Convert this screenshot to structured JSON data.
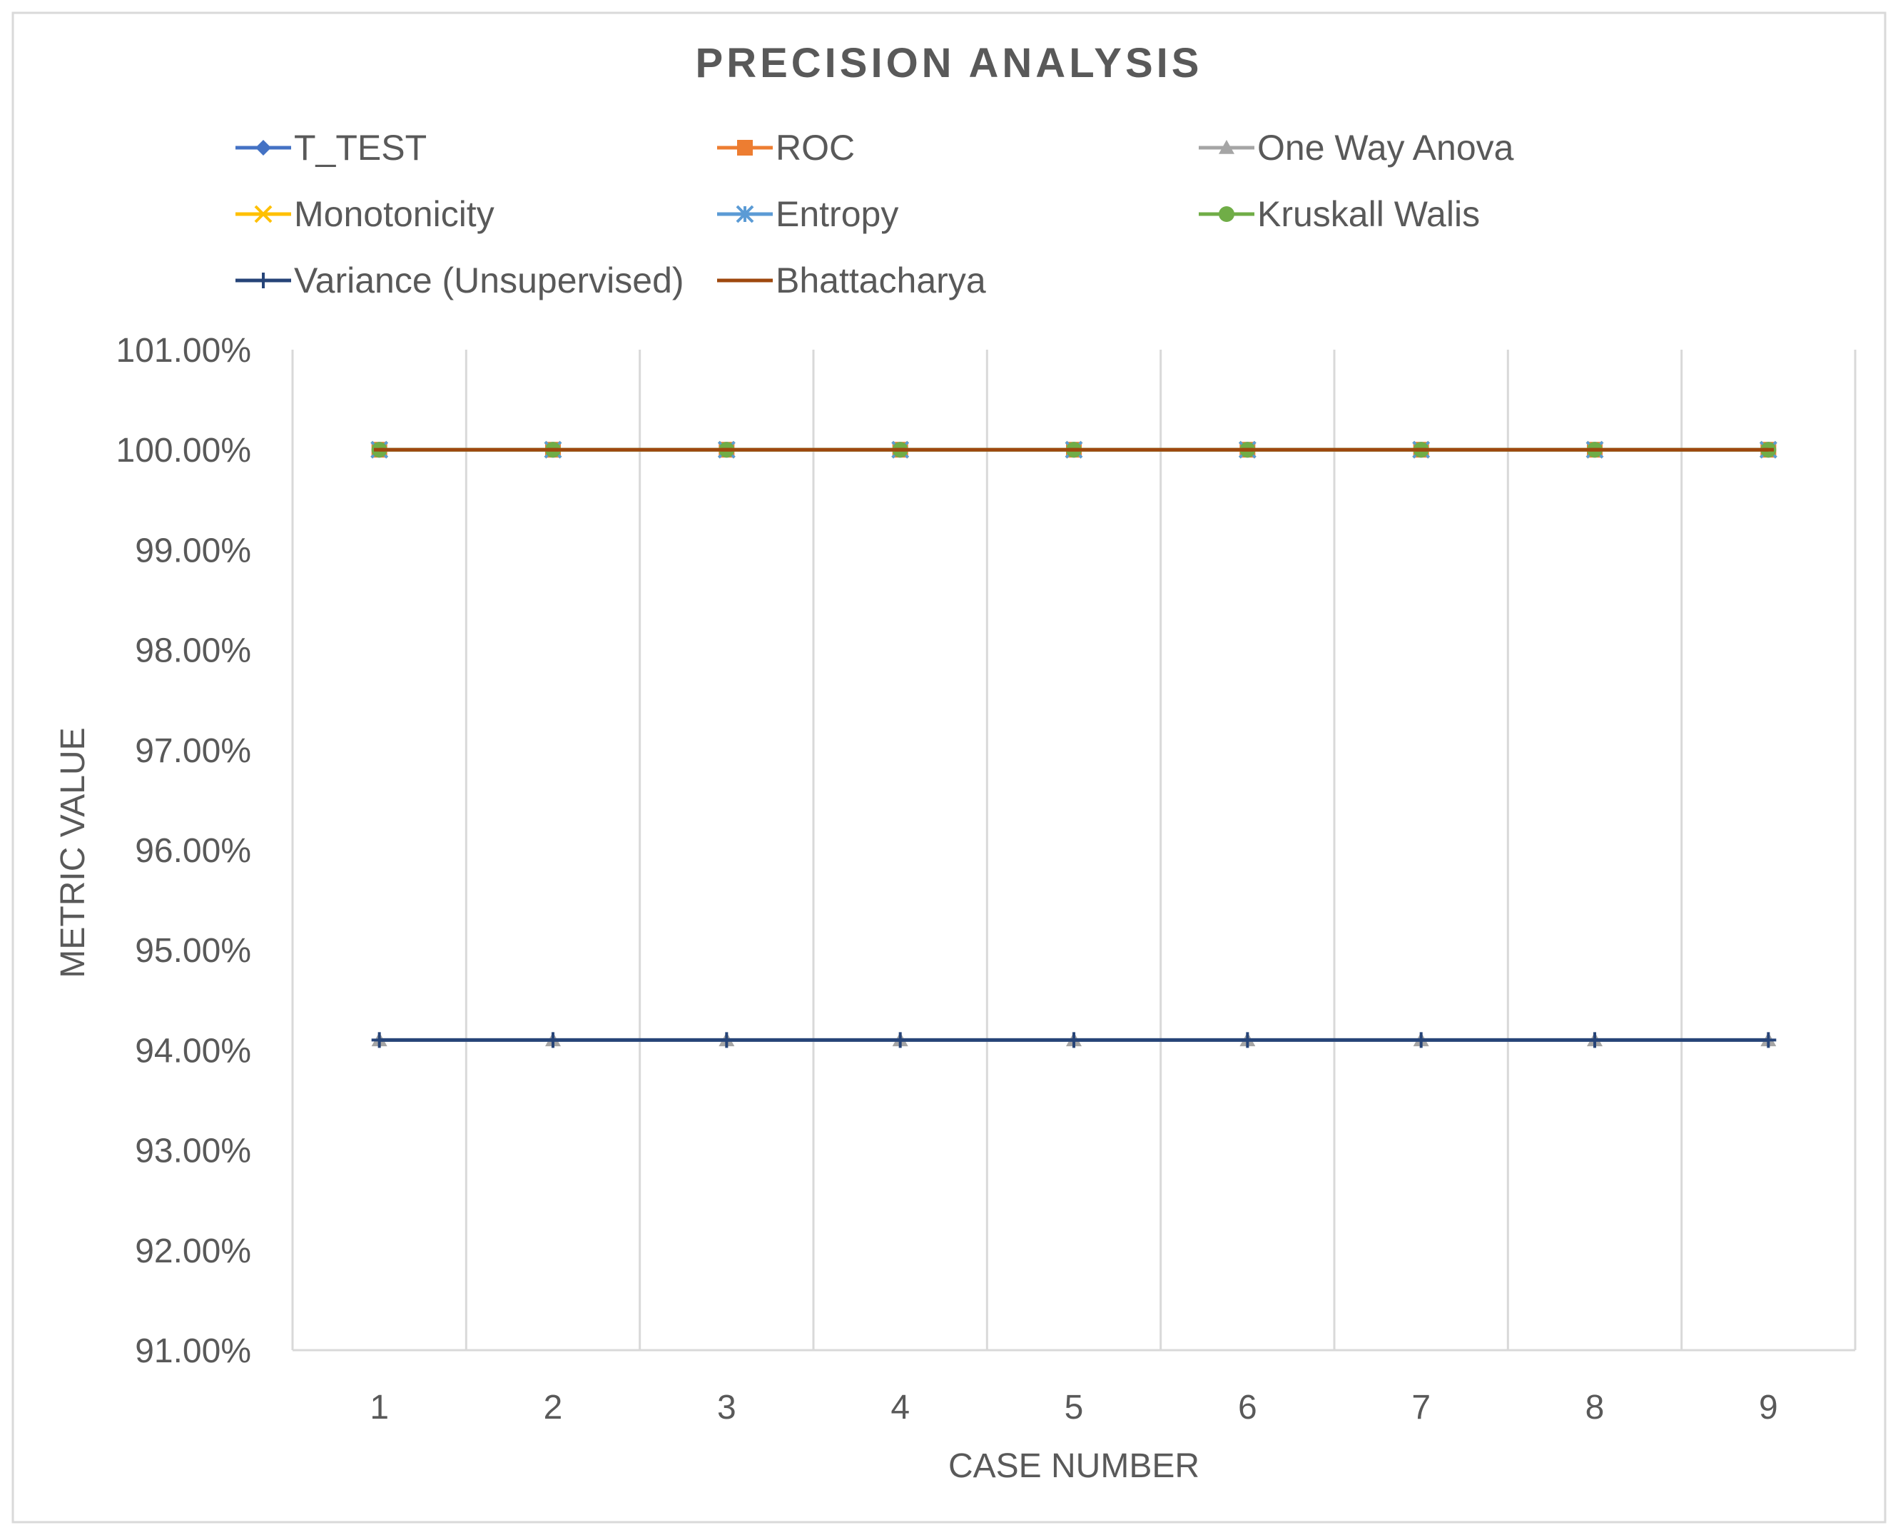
{
  "chart_data": {
    "type": "line",
    "title": "PRECISION ANALYSIS",
    "xlabel": "CASE NUMBER",
    "ylabel": "METRIC VALUE",
    "categories": [
      "1",
      "2",
      "3",
      "4",
      "5",
      "6",
      "7",
      "8",
      "9"
    ],
    "y_ticks": [
      "91.00%",
      "92.00%",
      "93.00%",
      "94.00%",
      "95.00%",
      "96.00%",
      "97.00%",
      "98.00%",
      "99.00%",
      "100.00%",
      "101.00%"
    ],
    "ylim": [
      0.91,
      1.01
    ],
    "grid": "vertical",
    "legend_position": "top",
    "series": [
      {
        "name": "T_TEST",
        "color": "#4472C4",
        "marker": "diamond",
        "values": [
          1,
          1,
          1,
          1,
          1,
          1,
          1,
          1,
          1
        ]
      },
      {
        "name": "ROC",
        "color": "#ED7D31",
        "marker": "square",
        "values": [
          1,
          1,
          1,
          1,
          1,
          1,
          1,
          1,
          1
        ]
      },
      {
        "name": "One Way Anova",
        "color": "#A5A5A5",
        "marker": "triangle",
        "values": [
          0.941,
          0.941,
          0.941,
          0.941,
          0.941,
          0.941,
          0.941,
          0.941,
          0.941
        ]
      },
      {
        "name": "Monotonicity",
        "color": "#FFC000",
        "marker": "x",
        "values": [
          1,
          1,
          1,
          1,
          1,
          1,
          1,
          1,
          1
        ]
      },
      {
        "name": "Entropy",
        "color": "#5B9BD5",
        "marker": "star",
        "values": [
          1,
          1,
          1,
          1,
          1,
          1,
          1,
          1,
          1
        ]
      },
      {
        "name": "Kruskall Walis",
        "color": "#70AD47",
        "marker": "circle",
        "values": [
          1,
          1,
          1,
          1,
          1,
          1,
          1,
          1,
          1
        ]
      },
      {
        "name": "Variance (Unsupervised)",
        "color": "#264478",
        "marker": "plus",
        "values": [
          0.941,
          0.941,
          0.941,
          0.941,
          0.941,
          0.941,
          0.941,
          0.941,
          0.941
        ]
      },
      {
        "name": "Bhattacharya",
        "color": "#9E480E",
        "marker": "dash",
        "values": [
          1,
          1,
          1,
          1,
          1,
          1,
          1,
          1,
          1
        ]
      }
    ]
  }
}
